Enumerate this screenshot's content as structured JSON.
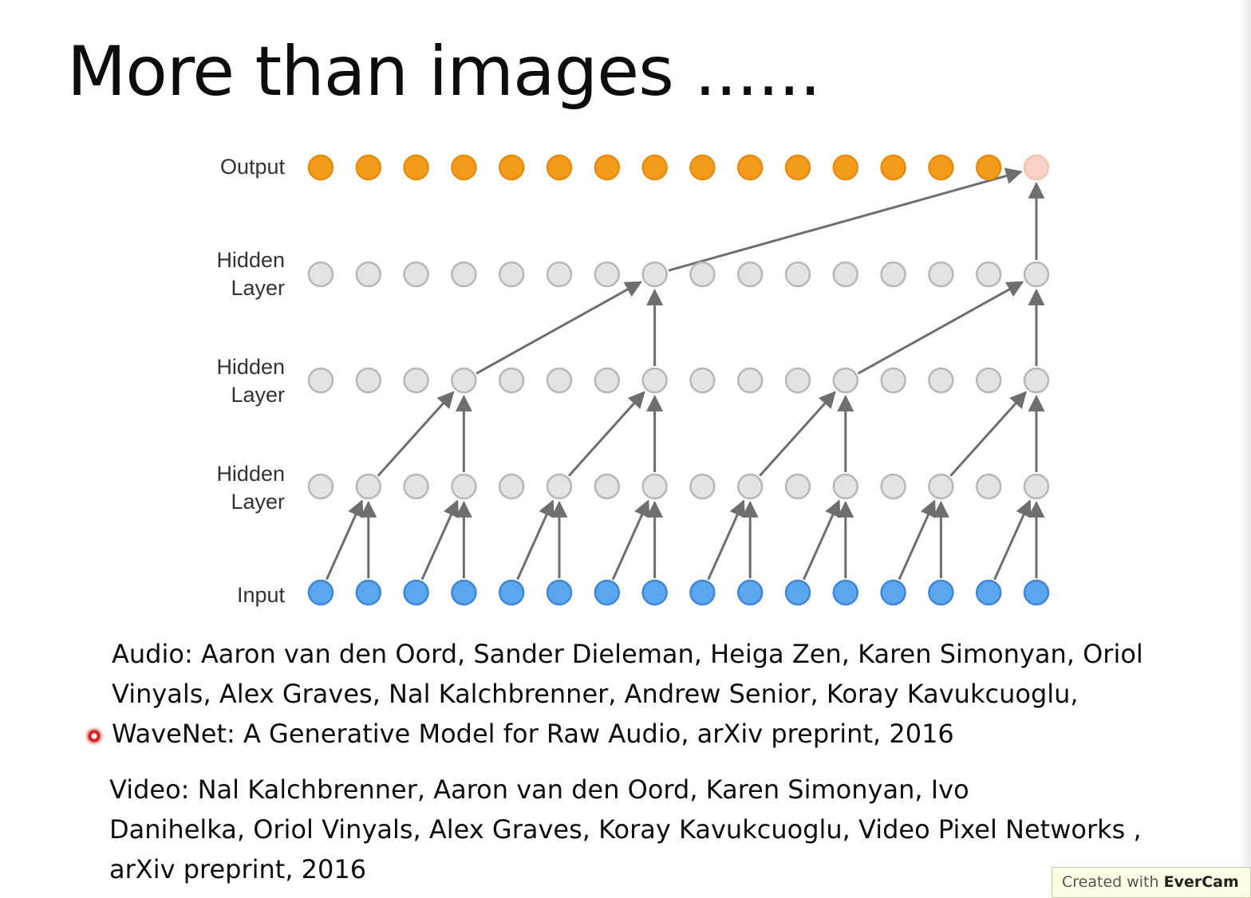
{
  "slide": {
    "title": "More than images ......"
  },
  "diagram": {
    "labels": {
      "output": "Output",
      "hidden": [
        "Hidden",
        "Layer"
      ],
      "input": "Input"
    },
    "nodes_per_layer": 16,
    "colors": {
      "output": "#f39c1c",
      "output_highlight": "#f8d3c5",
      "hidden": "#e3e3e3",
      "input": "#5aa6ef",
      "arrow": "#6e6e6e"
    }
  },
  "references": {
    "audio": [
      "Audio: Aaron van den Oord, Sander Dieleman, Heiga Zen, Karen Simonyan, Oriol",
      "Vinyals, Alex Graves, Nal Kalchbrenner, Andrew Senior, Koray Kavukcuoglu,",
      "WaveNet: A Generative Model for Raw Audio, arXiv preprint, 2016"
    ],
    "video": [
      "Video: Nal Kalchbrenner, Aaron van den Oord, Karen Simonyan, Ivo",
      "Danihelka, Oriol Vinyals, Alex Graves, Koray Kavukcuoglu, Video Pixel Networks ,",
      "arXiv preprint, 2016"
    ]
  },
  "watermark": {
    "prefix": "Created with",
    "brand": "EverCam"
  }
}
